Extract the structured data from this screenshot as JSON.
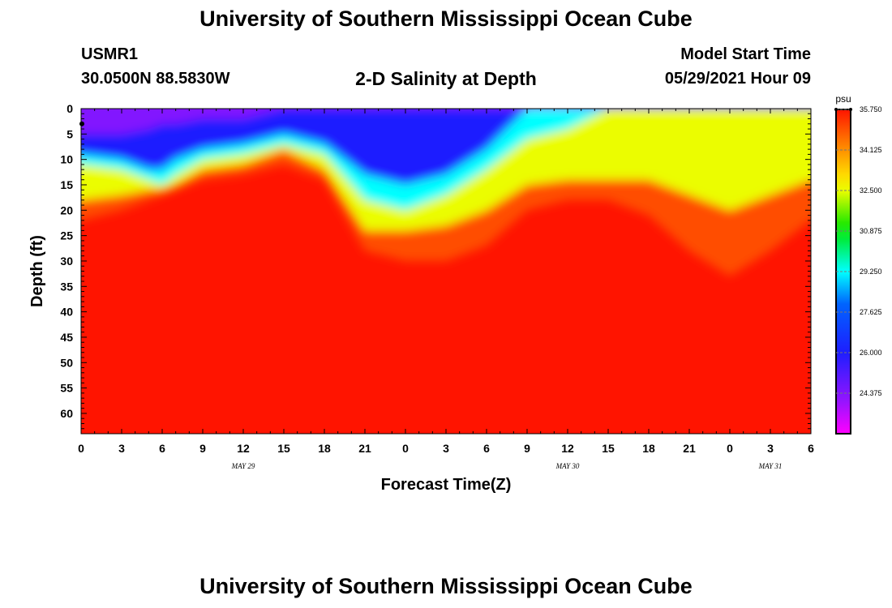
{
  "header": {
    "title": "University of Southern Mississippi Ocean Cube",
    "station_id": "USMR1",
    "coordinates": "30.0500N  88.5830W",
    "subtitle": "2-D Salinity at Depth",
    "model_start_label": "Model Start Time",
    "model_start_value": "05/29/2021 Hour 09"
  },
  "footer": {
    "title": "University of Southern Mississippi Ocean Cube"
  },
  "chart_data": {
    "type": "heatmap",
    "title": "2-D Salinity at Depth",
    "xlabel": "Forecast Time(Z)",
    "ylabel": "Depth (ft)",
    "x_range_hours": [
      0,
      54
    ],
    "y_range_ft": [
      0,
      64
    ],
    "x_tick_labels": [
      "0",
      "3",
      "6",
      "9",
      "12",
      "15",
      "18",
      "21",
      "0",
      "3",
      "6",
      "9",
      "12",
      "15",
      "18",
      "21",
      "0",
      "3",
      "6"
    ],
    "y_tick_labels": [
      "0",
      "5",
      "10",
      "15",
      "20",
      "25",
      "30",
      "35",
      "40",
      "45",
      "50",
      "55",
      "60"
    ],
    "date_labels": [
      {
        "text": "MAY 29",
        "hour": 12
      },
      {
        "text": "MAY 30",
        "hour": 36
      },
      {
        "text": "MAY 31",
        "hour": 51
      }
    ],
    "colorbar": {
      "unit": "psu",
      "min": 22.75,
      "max": 35.75,
      "tick_values": [
        35.75,
        34.125,
        32.5,
        30.875,
        29.25,
        27.625,
        26.0,
        24.375
      ],
      "tick_labels": [
        "35.750",
        "34.125",
        "32.500",
        "30.875",
        "29.250",
        "27.625",
        "26.000",
        "24.375"
      ]
    },
    "time_hours": [
      0,
      3,
      5,
      6,
      7,
      9,
      12,
      15,
      18,
      21,
      24,
      27,
      30,
      33,
      36,
      39,
      42,
      45,
      48,
      51,
      54
    ],
    "salinity_contours": [
      {
        "value": 35.0,
        "depth_ft": [
          22,
          20,
          18,
          17,
          16,
          14,
          13,
          11,
          14,
          28,
          30,
          30,
          27,
          20,
          18,
          18,
          21,
          28,
          33,
          28,
          22
        ]
      },
      {
        "value": 32.5,
        "depth_ft": [
          18,
          17,
          16,
          16,
          15,
          12,
          11,
          8,
          12,
          24,
          24,
          23,
          20,
          15,
          14,
          14,
          14,
          17,
          20,
          17,
          14
        ]
      },
      {
        "value": 29.25,
        "depth_ft": [
          11,
          12,
          14,
          15,
          13,
          10,
          9,
          7,
          9,
          18,
          20,
          17,
          12,
          6,
          4,
          0,
          0,
          0,
          0,
          0,
          0
        ]
      },
      {
        "value": 26.0,
        "depth_ft": [
          9,
          10,
          12,
          12,
          10,
          8,
          7,
          5,
          7,
          13,
          15,
          13,
          8,
          0,
          0,
          0,
          0,
          0,
          0,
          0,
          0
        ]
      },
      {
        "value": 24.375,
        "depth_ft": [
          5,
          5,
          4,
          3,
          3,
          2,
          2,
          0,
          0,
          0,
          0,
          0,
          0,
          0,
          0,
          0,
          0,
          0,
          0,
          0,
          0
        ]
      }
    ]
  }
}
